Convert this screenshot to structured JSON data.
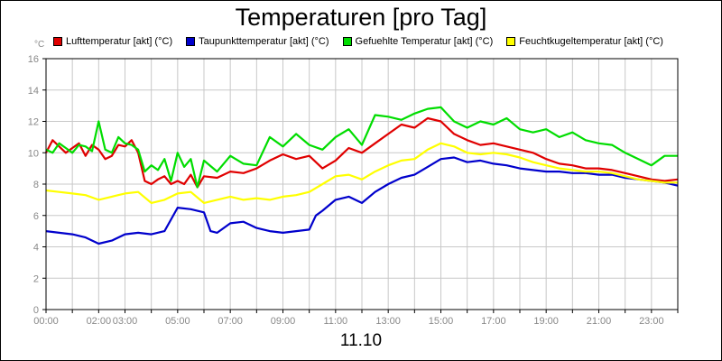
{
  "chart_data": {
    "type": "line",
    "title": "Temperaturen [pro Tag]",
    "ylabel": "°C",
    "xlabel": "11.10",
    "ylim": [
      0,
      16
    ],
    "yticks": [
      "0",
      "2",
      "4",
      "6",
      "8",
      "10",
      "12",
      "14",
      "16"
    ],
    "xlim": [
      0,
      24
    ],
    "xticks": [
      {
        "t": 0,
        "label": "00:00"
      },
      {
        "t": 2,
        "label": "02:00"
      },
      {
        "t": 3,
        "label": "03:00"
      },
      {
        "t": 5,
        "label": "05:00"
      },
      {
        "t": 7,
        "label": "07:00"
      },
      {
        "t": 9,
        "label": "09:00"
      },
      {
        "t": 11,
        "label": "11:00"
      },
      {
        "t": 13,
        "label": "13:00"
      },
      {
        "t": 15,
        "label": "15:00"
      },
      {
        "t": 17,
        "label": "17:00"
      },
      {
        "t": 19,
        "label": "19:00"
      },
      {
        "t": 21,
        "label": "21:00"
      },
      {
        "t": 23,
        "label": "23:00"
      }
    ],
    "grid": true,
    "legend_position": "top",
    "series": [
      {
        "name": "Lufttemperatur [akt] (°C)",
        "color": "#e00000",
        "x": [
          0,
          0.25,
          0.5,
          0.75,
          1,
          1.25,
          1.5,
          1.75,
          2,
          2.25,
          2.5,
          2.75,
          3,
          3.25,
          3.5,
          3.75,
          4,
          4.25,
          4.5,
          4.75,
          5,
          5.25,
          5.5,
          5.75,
          6,
          6.5,
          7,
          7.5,
          8,
          8.5,
          9,
          9.5,
          10,
          10.5,
          11,
          11.5,
          12,
          12.5,
          13,
          13.5,
          14,
          14.5,
          15,
          15.5,
          16,
          16.5,
          17,
          17.5,
          18,
          18.5,
          19,
          19.5,
          20,
          20.5,
          21,
          21.5,
          22,
          22.5,
          23,
          23.5,
          24
        ],
        "y": [
          10.0,
          10.8,
          10.4,
          10.0,
          10.3,
          10.6,
          9.8,
          10.5,
          10.2,
          9.6,
          9.8,
          10.5,
          10.4,
          10.8,
          10.0,
          8.2,
          8.0,
          8.3,
          8.5,
          8.0,
          8.2,
          8.0,
          8.6,
          7.8,
          8.5,
          8.4,
          8.8,
          8.7,
          9.0,
          9.5,
          9.9,
          9.6,
          9.8,
          9.0,
          9.5,
          10.3,
          10.0,
          10.6,
          11.2,
          11.8,
          11.6,
          12.2,
          12.0,
          11.2,
          10.8,
          10.5,
          10.6,
          10.4,
          10.2,
          10.0,
          9.6,
          9.3,
          9.2,
          9.0,
          9.0,
          8.9,
          8.7,
          8.5,
          8.3,
          8.2,
          8.3
        ]
      },
      {
        "name": "Taupunkttemperatur [akt] (°C)",
        "color": "#0000cc",
        "x": [
          0,
          0.5,
          1,
          1.5,
          2,
          2.5,
          3,
          3.5,
          4,
          4.5,
          5,
          5.5,
          6,
          6.25,
          6.5,
          7,
          7.5,
          8,
          8.5,
          9,
          9.5,
          10,
          10.25,
          10.5,
          11,
          11.5,
          12,
          12.5,
          13,
          13.5,
          14,
          14.5,
          15,
          15.5,
          16,
          16.5,
          17,
          17.5,
          18,
          18.5,
          19,
          19.5,
          20,
          20.5,
          21,
          21.5,
          22,
          22.5,
          23,
          23.5,
          24
        ],
        "y": [
          5.0,
          4.9,
          4.8,
          4.6,
          4.2,
          4.4,
          4.8,
          4.9,
          4.8,
          5.0,
          6.5,
          6.4,
          6.2,
          5.0,
          4.9,
          5.5,
          5.6,
          5.2,
          5.0,
          4.9,
          5.0,
          5.1,
          6.0,
          6.3,
          7.0,
          7.2,
          6.8,
          7.5,
          8.0,
          8.4,
          8.6,
          9.1,
          9.6,
          9.7,
          9.4,
          9.5,
          9.3,
          9.2,
          9.0,
          8.9,
          8.8,
          8.8,
          8.7,
          8.7,
          8.6,
          8.6,
          8.4,
          8.3,
          8.2,
          8.1,
          7.9
        ]
      },
      {
        "name": "Gefuehlte Temperatur [akt] (°C)",
        "color": "#00dd00",
        "x": [
          0,
          0.25,
          0.5,
          0.75,
          1,
          1.25,
          1.5,
          1.75,
          2,
          2.25,
          2.5,
          2.75,
          3,
          3.25,
          3.5,
          3.75,
          4,
          4.25,
          4.5,
          4.75,
          5,
          5.25,
          5.5,
          5.75,
          6,
          6.5,
          7,
          7.5,
          8,
          8.5,
          9,
          9.5,
          10,
          10.5,
          11,
          11.5,
          12,
          12.5,
          13,
          13.5,
          14,
          14.5,
          15,
          15.5,
          16,
          16.5,
          17,
          17.5,
          18,
          18.5,
          19,
          19.5,
          20,
          20.5,
          21,
          21.5,
          22,
          22.5,
          23,
          23.5,
          24
        ],
        "y": [
          10.2,
          10.0,
          10.6,
          10.3,
          10.0,
          10.5,
          10.4,
          10.1,
          12.0,
          10.2,
          10.0,
          11.0,
          10.6,
          10.5,
          10.2,
          8.8,
          9.2,
          8.9,
          9.6,
          8.2,
          10.0,
          9.1,
          9.6,
          7.8,
          9.5,
          8.8,
          9.8,
          9.3,
          9.2,
          11.0,
          10.4,
          11.2,
          10.5,
          10.2,
          11.0,
          11.5,
          10.5,
          12.4,
          12.3,
          12.1,
          12.5,
          12.8,
          12.9,
          12.0,
          11.6,
          12.0,
          11.8,
          12.2,
          11.5,
          11.3,
          11.5,
          11.0,
          11.3,
          10.8,
          10.6,
          10.5,
          10.0,
          9.6,
          9.2,
          9.8,
          9.8
        ]
      },
      {
        "name": "Feuchtkugeltemperatur [akt] (°C)",
        "color": "#ffff00",
        "x": [
          0,
          0.5,
          1,
          1.5,
          2,
          2.5,
          3,
          3.5,
          4,
          4.5,
          5,
          5.5,
          6,
          6.5,
          7,
          7.5,
          8,
          8.5,
          9,
          9.5,
          10,
          10.5,
          11,
          11.5,
          12,
          12.5,
          13,
          13.5,
          14,
          14.5,
          15,
          15.5,
          16,
          16.5,
          17,
          17.5,
          18,
          18.5,
          19,
          19.5,
          20,
          20.5,
          21,
          21.5,
          22,
          22.5,
          23,
          23.5,
          24
        ],
        "y": [
          7.6,
          7.5,
          7.4,
          7.3,
          7.0,
          7.2,
          7.4,
          7.5,
          6.8,
          7.0,
          7.4,
          7.5,
          6.8,
          7.0,
          7.2,
          7.0,
          7.1,
          7.0,
          7.2,
          7.3,
          7.5,
          8.0,
          8.5,
          8.6,
          8.3,
          8.8,
          9.2,
          9.5,
          9.6,
          10.2,
          10.6,
          10.4,
          10.0,
          9.9,
          10.0,
          9.9,
          9.7,
          9.4,
          9.2,
          9.0,
          8.9,
          8.8,
          8.8,
          8.7,
          8.5,
          8.3,
          8.2,
          8.1,
          8.1
        ]
      }
    ]
  }
}
